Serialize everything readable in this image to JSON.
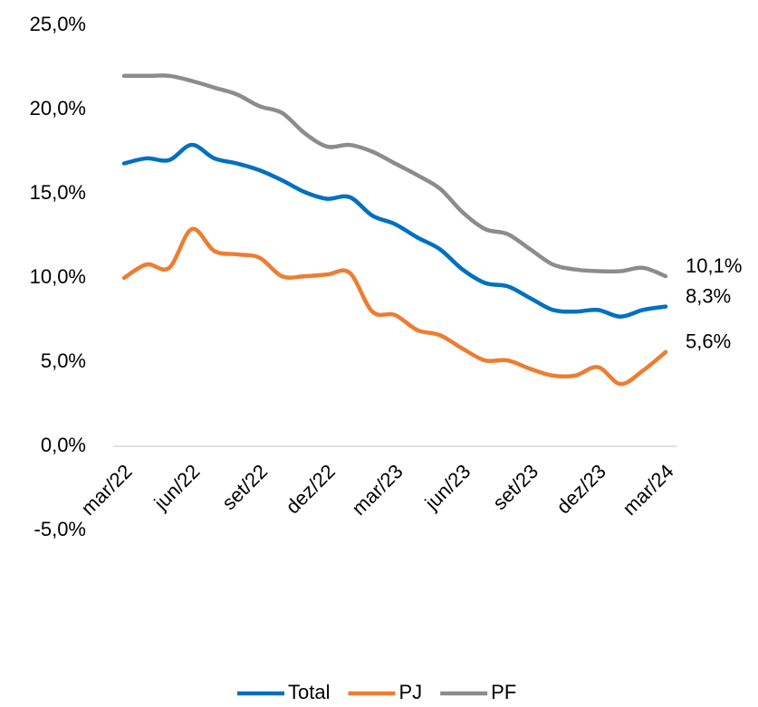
{
  "chart_data": {
    "type": "line",
    "categories": [
      "mar/22",
      null,
      null,
      "jun/22",
      null,
      null,
      "set/22",
      null,
      null,
      "dez/22",
      null,
      null,
      "mar/23",
      null,
      null,
      "jun/23",
      null,
      null,
      "set/23",
      null,
      null,
      "dez/23",
      null,
      null,
      "mar/24"
    ],
    "series": [
      {
        "name": "Total",
        "color": "#0070c0",
        "values": [
          16.8,
          17.1,
          17.0,
          17.9,
          17.1,
          16.8,
          16.4,
          15.8,
          15.1,
          14.7,
          14.8,
          13.7,
          13.2,
          12.4,
          11.7,
          10.5,
          9.7,
          9.5,
          8.8,
          8.1,
          8.0,
          8.1,
          7.7,
          8.1,
          8.3
        ],
        "value_labels": [
          null,
          null,
          null,
          null,
          null,
          null,
          null,
          null,
          null,
          null,
          null,
          null,
          null,
          null,
          null,
          null,
          null,
          null,
          null,
          null,
          null,
          null,
          null,
          null,
          "8,3%"
        ]
      },
      {
        "name": "PJ",
        "color": "#ed7d31",
        "values": [
          10.0,
          10.8,
          10.6,
          12.9,
          11.6,
          11.4,
          11.2,
          10.1,
          10.1,
          10.2,
          10.3,
          8.0,
          7.8,
          6.9,
          6.6,
          5.8,
          5.1,
          5.1,
          4.6,
          4.2,
          4.2,
          4.7,
          3.7,
          4.5,
          5.6
        ],
        "value_labels": [
          null,
          null,
          null,
          null,
          null,
          null,
          null,
          null,
          null,
          null,
          null,
          null,
          null,
          null,
          null,
          null,
          null,
          null,
          null,
          null,
          null,
          null,
          null,
          null,
          "5,6%"
        ]
      },
      {
        "name": "PF",
        "color": "#8c8c8c",
        "values": [
          22.0,
          22.0,
          22.0,
          21.7,
          21.3,
          20.9,
          20.2,
          19.8,
          18.6,
          17.8,
          17.9,
          17.5,
          16.8,
          16.1,
          15.3,
          13.9,
          12.9,
          12.6,
          11.7,
          10.8,
          10.5,
          10.4,
          10.4,
          10.6,
          10.1
        ],
        "value_labels": [
          null,
          null,
          null,
          null,
          null,
          null,
          null,
          null,
          null,
          null,
          null,
          null,
          null,
          null,
          null,
          null,
          null,
          null,
          null,
          null,
          null,
          null,
          null,
          null,
          "10,1%"
        ]
      }
    ],
    "ylim": [
      -5,
      25
    ],
    "yticks": [
      {
        "value": -5,
        "label": "-5,0%"
      },
      {
        "value": 0,
        "label": "0,0%"
      },
      {
        "value": 5,
        "label": "5,0%"
      },
      {
        "value": 10,
        "label": "10,0%"
      },
      {
        "value": 15,
        "label": "15,0%"
      },
      {
        "value": 20,
        "label": "20,0%"
      },
      {
        "value": 25,
        "label": "25,0%"
      }
    ],
    "legend": "bottom"
  }
}
